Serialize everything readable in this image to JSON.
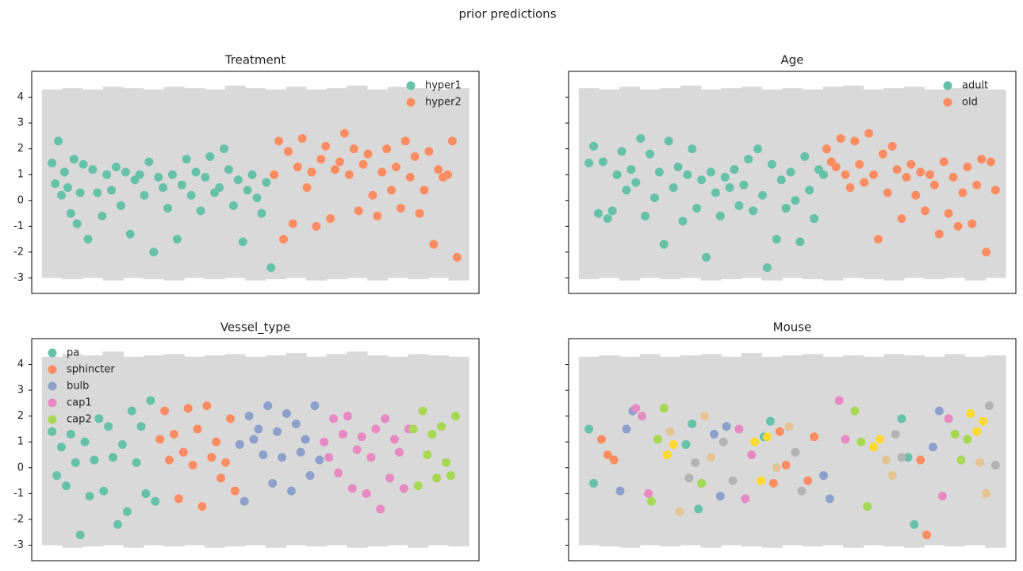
{
  "title": "prior predictions",
  "chart_data": [
    {
      "type": "scatter",
      "title": "Treatment",
      "xlim": [
        -13,
        273
      ],
      "ylim": [
        -3.6,
        5.0
      ],
      "yticks": [
        -3,
        -2,
        -1,
        0,
        1,
        2,
        3,
        4
      ],
      "legend": "upper right",
      "band": {
        "color": "#d9d9d9",
        "x": [
          0,
          13,
          26,
          39,
          52,
          65,
          78,
          91,
          104,
          117,
          130,
          143,
          156,
          169,
          182,
          195,
          208,
          221,
          234,
          247,
          260
        ],
        "lower": [
          -3.0,
          -3.05,
          -3.0,
          -3.1,
          -3.0,
          -3.05,
          -3.1,
          -3.0,
          -3.05,
          -3.0,
          -3.1,
          -3.05,
          -3.0,
          -3.1,
          -3.05,
          -3.0,
          -3.1,
          -3.0,
          -3.05,
          -3.0,
          -3.1
        ],
        "upper": [
          4.3,
          4.35,
          4.3,
          4.4,
          4.35,
          4.3,
          4.4,
          4.35,
          4.3,
          4.45,
          4.35,
          4.3,
          4.4,
          4.3,
          4.35,
          4.45,
          4.3,
          4.4,
          4.35,
          4.3,
          4.35
        ]
      },
      "series": [
        {
          "name": "hyper1",
          "color": "#66c2a5",
          "x": [
            0,
            2,
            4,
            6,
            8,
            10,
            12,
            14,
            16,
            18,
            20,
            23,
            26,
            29,
            32,
            35,
            38,
            41,
            44,
            47,
            50,
            53,
            56,
            59,
            62,
            65,
            68,
            71,
            74,
            77,
            80,
            83,
            86,
            89,
            92,
            95,
            98,
            101,
            104,
            107,
            110,
            113,
            116,
            119,
            122,
            125,
            128,
            131,
            134,
            137,
            140
          ],
          "values": [
            1.45,
            0.65,
            2.3,
            0.2,
            1.1,
            0.5,
            -0.5,
            1.6,
            -0.9,
            0.3,
            1.4,
            -1.5,
            1.2,
            0.3,
            -0.6,
            1.0,
            0.4,
            1.3,
            -0.2,
            1.1,
            -1.3,
            0.8,
            1.0,
            0.2,
            1.5,
            -2.0,
            0.9,
            0.5,
            -0.3,
            1.0,
            -1.5,
            0.6,
            1.6,
            0.2,
            1.1,
            -0.4,
            0.9,
            1.7,
            0.3,
            0.5,
            2.0,
            1.2,
            -0.2,
            0.8,
            -1.6,
            0.4,
            1.0,
            0.1,
            -0.5,
            0.7,
            -2.6
          ]
        },
        {
          "name": "hyper2",
          "color": "#fc8d62",
          "x": [
            142,
            145,
            148,
            151,
            154,
            157,
            160,
            163,
            166,
            169,
            172,
            175,
            178,
            181,
            184,
            187,
            190,
            193,
            196,
            199,
            202,
            205,
            208,
            211,
            214,
            217,
            220,
            223,
            226,
            229,
            232,
            235,
            238,
            241,
            244,
            247,
            250,
            253,
            256,
            259
          ],
          "values": [
            1.0,
            2.3,
            -1.5,
            1.9,
            -0.9,
            1.3,
            2.4,
            0.5,
            1.1,
            -1.0,
            1.6,
            2.1,
            -0.7,
            1.2,
            1.5,
            2.6,
            1.0,
            2.0,
            -0.4,
            1.4,
            1.8,
            0.2,
            -0.6,
            1.1,
            2.0,
            0.4,
            1.3,
            -0.3,
            2.3,
            0.9,
            1.7,
            -0.5,
            0.4,
            1.9,
            -1.7,
            1.2,
            0.9,
            1.0,
            2.3,
            -2.2
          ]
        }
      ]
    },
    {
      "type": "scatter",
      "title": "Age",
      "xlim": [
        -13,
        273
      ],
      "ylim": [
        -3.6,
        5.0
      ],
      "yticks": [
        -3,
        -2,
        -1,
        0,
        1,
        2,
        3,
        4
      ],
      "legend": "upper right",
      "band": {
        "color": "#d9d9d9",
        "x": [
          0,
          13,
          26,
          39,
          52,
          65,
          78,
          91,
          104,
          117,
          130,
          143,
          156,
          169,
          182,
          195,
          208,
          221,
          234,
          247,
          260
        ],
        "lower": [
          -3.05,
          -3.0,
          -3.1,
          -3.0,
          -3.05,
          -3.0,
          -3.1,
          -3.05,
          -3.0,
          -3.1,
          -3.0,
          -3.05,
          -3.1,
          -3.0,
          -3.05,
          -3.1,
          -3.0,
          -3.05,
          -3.0,
          -3.1,
          -3.0
        ],
        "upper": [
          4.35,
          4.3,
          4.4,
          4.3,
          4.35,
          4.45,
          4.3,
          4.35,
          4.4,
          4.3,
          4.35,
          4.3,
          4.4,
          4.45,
          4.3,
          4.35,
          4.4,
          4.3,
          4.35,
          4.4,
          4.3
        ]
      },
      "series": [
        {
          "name": "adult",
          "color": "#66c2a5",
          "x": [
            0,
            3,
            6,
            9,
            12,
            15,
            18,
            21,
            24,
            27,
            30,
            33,
            36,
            39,
            42,
            45,
            48,
            51,
            54,
            57,
            60,
            63,
            66,
            69,
            72,
            75,
            78,
            81,
            84,
            87,
            90,
            93,
            96,
            99,
            102,
            105,
            108,
            111,
            114,
            117,
            120,
            123,
            126,
            129,
            132,
            135,
            138,
            141,
            144,
            147,
            150
          ],
          "values": [
            1.45,
            2.1,
            -0.5,
            1.5,
            -0.7,
            -0.4,
            1.0,
            1.9,
            0.4,
            1.2,
            0.7,
            2.4,
            -0.6,
            1.8,
            0.1,
            1.1,
            -1.7,
            2.3,
            0.5,
            1.3,
            -0.8,
            1.0,
            2.0,
            -0.3,
            0.8,
            -2.2,
            1.1,
            0.3,
            -0.6,
            0.9,
            0.5,
            1.2,
            -0.2,
            0.6,
            1.6,
            -0.4,
            2.0,
            0.2,
            -2.6,
            1.4,
            -1.5,
            0.8,
            -0.3,
            1.1,
            0.0,
            -1.6,
            1.7,
            0.4,
            -0.7,
            1.2,
            1.0
          ]
        },
        {
          "name": "old",
          "color": "#fc8d62",
          "x": [
            152,
            155,
            158,
            161,
            164,
            167,
            170,
            173,
            176,
            179,
            182,
            185,
            188,
            191,
            194,
            197,
            200,
            203,
            206,
            209,
            212,
            215,
            218,
            221,
            224,
            227,
            230,
            233,
            236,
            239,
            242,
            245,
            248,
            251,
            254,
            257,
            260
          ],
          "values": [
            2.0,
            1.5,
            1.3,
            2.4,
            1.0,
            0.5,
            2.3,
            1.4,
            0.7,
            2.6,
            1.0,
            -1.5,
            1.8,
            0.3,
            2.1,
            1.2,
            -0.7,
            0.9,
            1.4,
            0.2,
            1.1,
            -0.4,
            1.0,
            0.6,
            -1.3,
            1.5,
            -0.5,
            0.9,
            -1.0,
            0.3,
            1.3,
            -0.9,
            0.6,
            1.6,
            -2.0,
            1.5,
            0.4
          ]
        }
      ]
    },
    {
      "type": "scatter",
      "title": "Vessel_type",
      "xlim": [
        -13,
        273
      ],
      "ylim": [
        -3.6,
        5.0
      ],
      "yticks": [
        -3,
        -2,
        -1,
        0,
        1,
        2,
        3,
        4
      ],
      "legend": "upper left",
      "band": {
        "color": "#d9d9d9",
        "x": [
          0,
          13,
          26,
          39,
          52,
          65,
          78,
          91,
          104,
          117,
          130,
          143,
          156,
          169,
          182,
          195,
          208,
          221,
          234,
          247,
          260
        ],
        "lower": [
          -3.0,
          -3.1,
          -3.05,
          -3.0,
          -3.1,
          -3.0,
          -3.05,
          -3.0,
          -3.1,
          -3.05,
          -3.0,
          -3.1,
          -3.0,
          -3.05,
          -3.0,
          -3.1,
          -3.05,
          -3.0,
          -3.1,
          -3.0,
          -3.05
        ],
        "upper": [
          4.3,
          4.4,
          4.35,
          4.5,
          4.3,
          4.35,
          4.4,
          4.3,
          4.35,
          4.4,
          4.3,
          4.35,
          4.45,
          4.3,
          4.4,
          4.5,
          4.35,
          4.3,
          4.4,
          4.35,
          4.3
        ]
      },
      "series": [
        {
          "name": "pa",
          "color": "#66c2a5",
          "x": [
            0,
            3,
            6,
            9,
            12,
            15,
            18,
            21,
            24,
            27,
            30,
            33,
            36,
            39,
            42,
            45,
            48,
            51,
            54,
            57,
            60,
            63,
            66
          ],
          "values": [
            1.4,
            -0.3,
            0.8,
            -0.7,
            1.3,
            0.2,
            -2.6,
            1.0,
            -1.1,
            0.3,
            1.9,
            -0.9,
            1.6,
            0.4,
            -2.2,
            0.9,
            -1.7,
            2.2,
            0.2,
            1.6,
            -1.0,
            2.6,
            -1.3
          ]
        },
        {
          "name": "sphincter",
          "color": "#fc8d62",
          "x": [
            69,
            72,
            75,
            78,
            81,
            84,
            87,
            90,
            93,
            96,
            99,
            102,
            105,
            108,
            111,
            114,
            117
          ],
          "values": [
            1.1,
            2.2,
            0.3,
            1.3,
            -1.2,
            0.6,
            2.3,
            0.1,
            1.5,
            -1.5,
            2.4,
            0.4,
            1.0,
            -0.4,
            0.2,
            1.9,
            -0.9
          ]
        },
        {
          "name": "bulb",
          "color": "#8da0cb",
          "x": [
            120,
            123,
            126,
            129,
            132,
            135,
            138,
            141,
            144,
            147,
            150,
            153,
            156,
            159,
            162,
            165,
            168,
            171
          ],
          "values": [
            0.9,
            -1.3,
            2.0,
            1.1,
            1.5,
            0.5,
            2.4,
            -0.6,
            1.4,
            0.4,
            2.1,
            -0.9,
            1.7,
            0.6,
            1.1,
            -0.3,
            2.4,
            0.3
          ]
        },
        {
          "name": "cap1",
          "color": "#e78ac3",
          "x": [
            174,
            177,
            180,
            183,
            186,
            189,
            192,
            195,
            198,
            201,
            204,
            207,
            210,
            213,
            216,
            219,
            222,
            225,
            228
          ],
          "values": [
            1.0,
            0.4,
            1.9,
            -0.2,
            1.3,
            2.0,
            -0.8,
            0.7,
            1.2,
            -1.0,
            0.4,
            1.5,
            -1.6,
            1.9,
            -0.4,
            1.1,
            0.6,
            -0.8,
            1.5
          ]
        },
        {
          "name": "cap2",
          "color": "#a6d854",
          "x": [
            231,
            234,
            237,
            240,
            243,
            246,
            249,
            252,
            255,
            258
          ],
          "values": [
            1.5,
            -0.7,
            2.2,
            0.5,
            1.3,
            -0.4,
            1.6,
            0.2,
            -0.3,
            2.0
          ]
        }
      ]
    },
    {
      "type": "scatter",
      "title": "Mouse",
      "xlim": [
        -13,
        273
      ],
      "ylim": [
        -3.6,
        5.0
      ],
      "yticks": [
        -3,
        -2,
        -1,
        0,
        1,
        2,
        3,
        4
      ],
      "band": {
        "color": "#d9d9d9",
        "x": [
          0,
          13,
          26,
          39,
          52,
          65,
          78,
          91,
          104,
          117,
          130,
          143,
          156,
          169,
          182,
          195,
          208,
          221,
          234,
          247,
          260
        ],
        "lower": [
          -3.0,
          -3.05,
          -3.1,
          -3.0,
          -3.05,
          -3.0,
          -3.1,
          -3.0,
          -3.05,
          -3.1,
          -3.0,
          -3.05,
          -3.0,
          -3.1,
          -3.0,
          -3.05,
          -3.1,
          -3.0,
          -3.05,
          -3.0,
          -3.1
        ],
        "upper": [
          4.3,
          4.35,
          4.3,
          4.4,
          4.3,
          4.35,
          4.4,
          4.3,
          4.45,
          4.3,
          4.35,
          4.4,
          4.3,
          4.35,
          4.3,
          4.4,
          4.35,
          4.3,
          4.4,
          4.3,
          4.35
        ]
      },
      "series": [
        {
          "color": "#66c2a5",
          "x": [
            0,
            3,
            62,
            66,
            70,
            112,
            116,
            200,
            204,
            208
          ],
          "values": [
            1.5,
            -0.6,
            0.9,
            1.7,
            -1.6,
            1.2,
            1.8,
            1.9,
            0.4,
            -2.2
          ]
        },
        {
          "color": "#fc8d62",
          "x": [
            8,
            12,
            16,
            118,
            122,
            126,
            140,
            144,
            212,
            216
          ],
          "values": [
            1.1,
            0.5,
            0.3,
            -0.6,
            1.4,
            0.1,
            -0.5,
            1.2,
            0.3,
            -2.6
          ]
        },
        {
          "color": "#8da0cb",
          "x": [
            20,
            24,
            28,
            80,
            84,
            88,
            150,
            154,
            220,
            224
          ],
          "values": [
            -0.9,
            1.5,
            2.2,
            1.3,
            -1.1,
            1.6,
            -0.3,
            -1.2,
            0.8,
            2.2
          ]
        },
        {
          "color": "#e78ac3",
          "x": [
            30,
            34,
            38,
            96,
            100,
            104,
            160,
            164,
            226,
            230
          ],
          "values": [
            2.3,
            2.0,
            -1.0,
            1.5,
            -1.2,
            0.5,
            2.6,
            1.1,
            -1.1,
            1.9
          ]
        },
        {
          "color": "#a6d854",
          "x": [
            40,
            44,
            48,
            72,
            170,
            174,
            178,
            234,
            238,
            242
          ],
          "values": [
            -1.3,
            1.1,
            2.3,
            -0.6,
            2.2,
            1.0,
            -1.5,
            1.3,
            0.3,
            1.1
          ]
        },
        {
          "color": "#ffd92f",
          "x": [
            50,
            54,
            106,
            110,
            114,
            182,
            186,
            244,
            248,
            252
          ],
          "values": [
            0.5,
            0.9,
            1.0,
            -0.5,
            1.2,
            0.8,
            1.1,
            2.1,
            1.4,
            1.8
          ]
        },
        {
          "color": "#e5c494",
          "x": [
            52,
            58,
            74,
            78,
            120,
            128,
            190,
            194,
            250,
            254
          ],
          "values": [
            1.4,
            -1.7,
            2.0,
            0.4,
            0.0,
            1.6,
            0.3,
            -0.3,
            0.2,
            -1.0
          ]
        },
        {
          "color": "#b3b3b3",
          "x": [
            64,
            68,
            86,
            92,
            132,
            136,
            196,
            200,
            256,
            260
          ],
          "values": [
            -0.4,
            0.2,
            1.0,
            -0.5,
            0.6,
            -0.9,
            1.3,
            0.4,
            2.4,
            0.1
          ]
        }
      ]
    }
  ]
}
